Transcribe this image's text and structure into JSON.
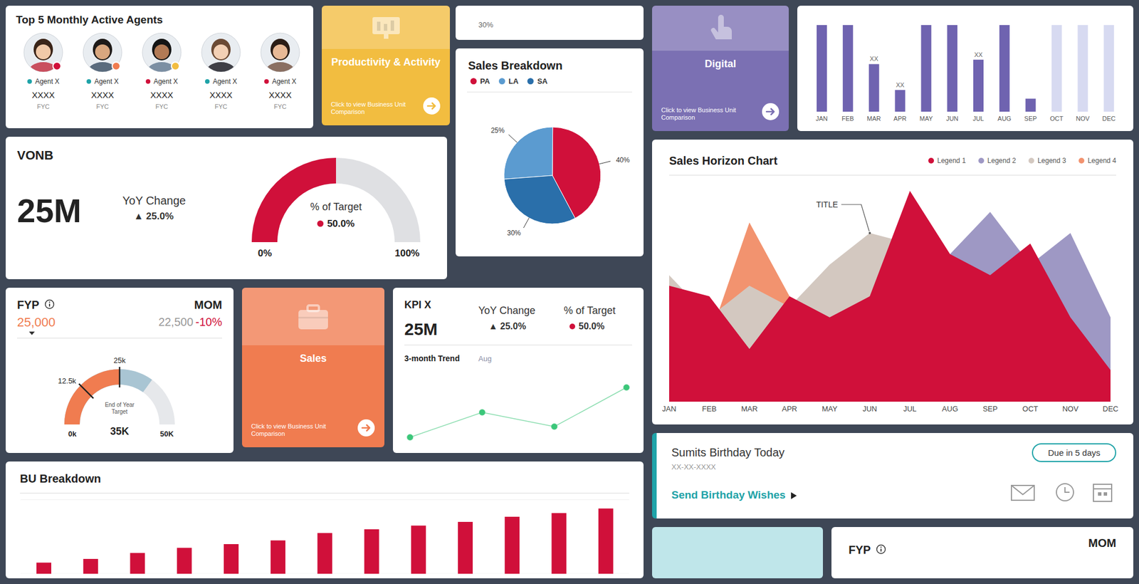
{
  "agents": {
    "title": "Top 5 Monthly Active Agents",
    "items": [
      {
        "name": "Agent X",
        "value": "XXXX",
        "unit": "FYC"
      },
      {
        "name": "Agent X",
        "value": "XXXX",
        "unit": "FYC"
      },
      {
        "name": "Agent X",
        "value": "XXXX",
        "unit": "FYC"
      },
      {
        "name": "Agent X",
        "value": "XXXX",
        "unit": "FYC"
      },
      {
        "name": "Agent X",
        "value": "XXXX",
        "unit": "FYC"
      }
    ]
  },
  "tiles": [
    {
      "title": "Productivity & Activity",
      "subtitle": "Click to view Business Unit Comparison",
      "color": "#f2bd40"
    },
    {
      "title": "Digital",
      "subtitle": "Click to view Business Unit Comparison",
      "color": "#7b70b3"
    },
    {
      "title": "Sales",
      "subtitle": "Click to view Business Unit Comparison",
      "color": "#f07c50"
    }
  ],
  "partial_cards": [
    {
      "text": "30%"
    },
    {
      "title": "FYP",
      "right": "MOM"
    }
  ],
  "vonb": {
    "title": "VONB",
    "value": "25M",
    "change_title": "YoY Change",
    "change": "▲ 25.0%"
  },
  "fyp": {
    "title": "FYP",
    "value": "25,000",
    "compare_title": "MOM",
    "compare_value": "22,500",
    "compare_change": "-10%"
  },
  "kpi": {
    "title": "KPI X",
    "value": "25M",
    "change_title": "YoY Change",
    "change": "▲ 25.0%",
    "target_title": "% of Target",
    "target": "50.0%",
    "trend_title": "3-month Trend"
  },
  "birthday": {
    "title": "Sumits Birthday Today",
    "date": "XX-XX-XXXX",
    "action": "Send Birthday Wishes",
    "due": "Due in 5 days"
  },
  "chart_data": [
    {
      "type": "pie",
      "title": "Sales Breakdown",
      "categories": [
        "PA",
        "LA",
        "SA"
      ],
      "values": [
        40,
        25,
        30
      ],
      "value_labels": [
        "40%",
        "25%",
        "30%"
      ],
      "colors": [
        "#d0103a",
        "#5b9bd0",
        "#2a6faa"
      ],
      "legend": "top",
      "data_labels": true
    },
    {
      "type": "bar",
      "categories": [
        "JAN",
        "FEB",
        "MAR",
        "APR",
        "MAY",
        "JUN",
        "JUL",
        "AUG",
        "SEP",
        "OCT",
        "NOV",
        "DEC"
      ],
      "values": [
        100,
        100,
        55,
        25,
        100,
        100,
        60,
        100,
        15,
        100,
        100,
        100
      ],
      "value_labels": [
        null,
        null,
        "XX",
        "XX",
        null,
        null,
        "XX",
        null,
        null,
        null,
        null,
        null
      ],
      "colors": [
        "#6f63b0",
        "#6f63b0",
        "#6f63b0",
        "#6f63b0",
        "#6f63b0",
        "#6f63b0",
        "#6f63b0",
        "#6f63b0",
        "#6f63b0",
        "#d7daf1",
        "#d7daf1",
        "#d7daf1"
      ],
      "ylim": [
        0,
        100
      ],
      "tick_labels": "x"
    },
    {
      "type": "area",
      "title": "Sales Horizon Chart",
      "categories": [
        "JAN",
        "FEB",
        "MAR",
        "APR",
        "MAY",
        "JUN",
        "JUL",
        "AUG",
        "SEP",
        "OCT",
        "NOV",
        "DEC"
      ],
      "series": [
        {
          "name": "Legend 1",
          "color": "#d0103a",
          "values": [
            55,
            50,
            25,
            50,
            40,
            50,
            100,
            70,
            60,
            75,
            40,
            15
          ]
        },
        {
          "name": "Legend 2",
          "color": "#9e98c4",
          "values": [
            40,
            45,
            25,
            20,
            20,
            30,
            40,
            70,
            90,
            65,
            80,
            40
          ]
        },
        {
          "name": "Legend 3",
          "color": "#d3c8c0",
          "values": [
            60,
            40,
            55,
            45,
            65,
            80,
            75,
            50,
            40,
            40,
            30,
            10
          ]
        },
        {
          "name": "Legend 4",
          "color": "#f2936f",
          "values": [
            20,
            30,
            85,
            50,
            30,
            20,
            10,
            10,
            10,
            10,
            10,
            5
          ]
        }
      ],
      "ylim": [
        0,
        100
      ],
      "tick_labels": "x",
      "legend": "top right",
      "annotations": [
        {
          "text": "TITLE",
          "x": "JUN",
          "y": 80
        }
      ]
    },
    {
      "type": "bar",
      "title": "BU Breakdown",
      "categories": [
        null,
        null,
        null,
        null,
        null,
        null,
        null,
        null,
        null,
        null,
        null,
        null,
        null
      ],
      "values": [
        15,
        20,
        28,
        35,
        40,
        45,
        55,
        60,
        65,
        70,
        77,
        82,
        88
      ],
      "color": "#d0103a",
      "ylim": [
        0,
        100
      ],
      "yticks": [
        0,
        25,
        50,
        75,
        100
      ],
      "grid": true,
      "tick_labels": false
    },
    {
      "type": "line",
      "categories": [
        null,
        null,
        null,
        null
      ],
      "series": [
        {
          "name": "Aug",
          "color": "#3cc77a",
          "values": [
            10,
            45,
            25,
            80
          ]
        }
      ],
      "ylim": [
        0,
        100
      ],
      "tick_labels": false,
      "marker": "circle"
    },
    {
      "type": "gauge",
      "title": "% of Target",
      "values": [
        50
      ],
      "value_labels": [
        "50.0%"
      ],
      "color": "#d0103a",
      "ylim": [
        0,
        100
      ],
      "yticks": [
        {
          "value": 0,
          "label": "0%"
        },
        {
          "value": 100,
          "label": "100%"
        }
      ]
    },
    {
      "type": "gauge",
      "values": [
        25
      ],
      "color": "#f07c50",
      "ylim": [
        0,
        50
      ],
      "yticks": [
        {
          "value": 0,
          "label": "0k"
        },
        {
          "value": 12.5,
          "label": "12.5k"
        },
        {
          "value": 25,
          "label": "25k"
        },
        {
          "value": 50,
          "label": "50K"
        }
      ],
      "target": {
        "value": 35,
        "label": "35K",
        "text": "End of Year Target",
        "color": "#a9c5d3"
      }
    }
  ]
}
